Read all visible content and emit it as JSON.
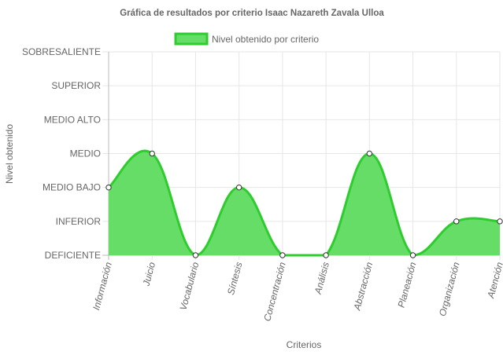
{
  "chart_data": {
    "type": "area",
    "title": "Gráfica de resultados por criterio Isaac Nazareth Zavala Ulloa",
    "xlabel": "Criterios",
    "ylabel": "Nivel obtenido",
    "y_levels": [
      "DEFICIENTE",
      "INFERIOR",
      "MEDIO BAJO",
      "MEDIO",
      "MEDIO ALTO",
      "SUPERIOR",
      "SOBRESALIENTE"
    ],
    "ylim": [
      0,
      6
    ],
    "categories": [
      "Información",
      "Juicio",
      "Vocabulario",
      "Síntesis",
      "Concentración",
      "Análisis",
      "Abstracción",
      "Planeación",
      "Organización",
      "Atención"
    ],
    "series": [
      {
        "name": "Nivel obtenido por criterio",
        "values": [
          2,
          3,
          0,
          2,
          0,
          0,
          3,
          0,
          1,
          1
        ]
      }
    ],
    "grid": true,
    "legend_position": "top-center",
    "colors": {
      "fill": "#66dd66",
      "stroke": "#2ecc2e",
      "grid": "#e6e6e6",
      "axis": "#bbbbbb"
    }
  }
}
